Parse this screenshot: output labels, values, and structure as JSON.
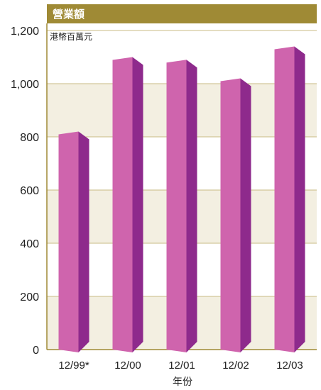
{
  "colors": {
    "header_bg": "#9f8a35",
    "band": "#f3efe1",
    "gridline": "#c9bb84",
    "bar_front": "#cf64ad",
    "bar_side": "#8e2a8c",
    "axis_text": "#222222"
  },
  "chart_data": {
    "type": "bar",
    "title": "營業額",
    "unit_label": "港幣百萬元",
    "xlabel": "年份",
    "ylabel": "",
    "categories": [
      "12/99*",
      "12/00",
      "12/01",
      "12/02",
      "12/03"
    ],
    "values": [
      820,
      1100,
      1090,
      1020,
      1140
    ],
    "ylim": [
      0,
      1200
    ],
    "yticks": [
      0,
      200,
      400,
      600,
      800,
      1000,
      1200
    ],
    "ytick_labels": [
      "0",
      "200",
      "400",
      "600",
      "800",
      "1,000",
      "1,200"
    ],
    "grid": true,
    "legend": "none"
  }
}
